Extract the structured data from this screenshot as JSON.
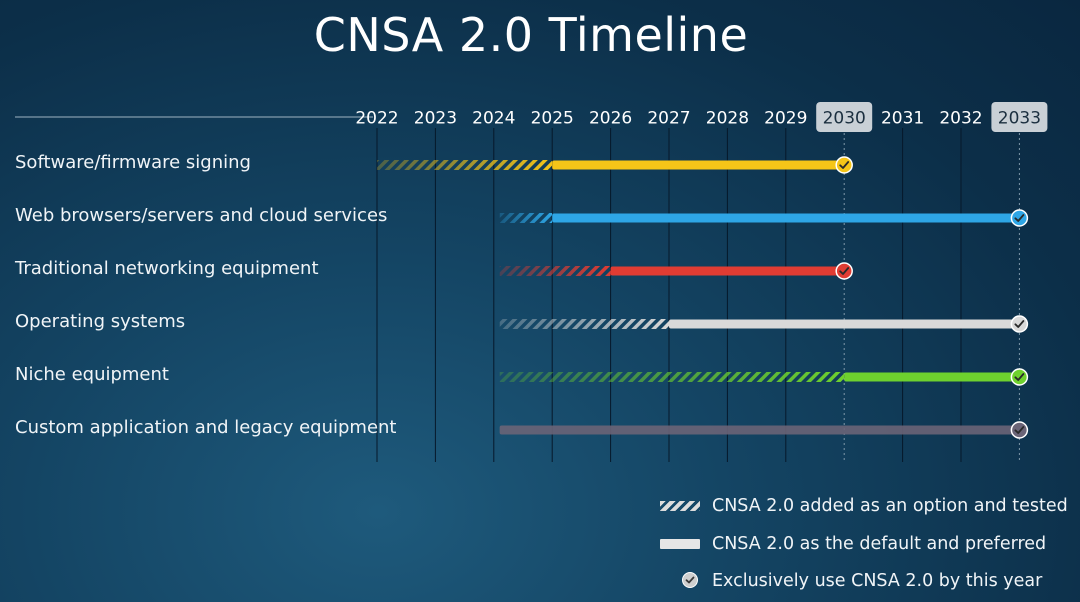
{
  "title": "CNSA 2.0 Timeline",
  "years": [
    "2022",
    "2023",
    "2024",
    "2025",
    "2026",
    "2027",
    "2028",
    "2029",
    "2030",
    "2031",
    "2032",
    "2033"
  ],
  "highlighted_years": [
    "2030",
    "2033"
  ],
  "rows": [
    {
      "label": "Software/firmware signing",
      "color": "#f5c518",
      "hatch_start": 2022.0,
      "solid_start": 2025.0,
      "end": 2030.0
    },
    {
      "label": "Web browsers/servers and cloud services",
      "color": "#2ea6e6",
      "hatch_start": 2024.1,
      "solid_start": 2025.0,
      "end": 2033.0
    },
    {
      "label": "Traditional networking equipment",
      "color": "#e03c33",
      "hatch_start": 2024.1,
      "solid_start": 2026.0,
      "end": 2030.0
    },
    {
      "label": "Operating systems",
      "color": "#d9d9d9",
      "hatch_start": 2024.1,
      "solid_start": 2027.0,
      "end": 2033.0
    },
    {
      "label": "Niche equipment",
      "color": "#6ed12e",
      "hatch_start": 2024.1,
      "solid_start": 2030.0,
      "end": 2033.0
    },
    {
      "label": "Custom application and legacy equipment",
      "color": "#6a6477",
      "hatch_start": 2024.1,
      "solid_start": 2024.1,
      "end": 2033.0
    }
  ],
  "legend": {
    "hatch": "CNSA 2.0 added as an option and tested",
    "solid": "CNSA 2.0 as the default and preferred",
    "check": "Exclusively use CNSA 2.0 by this year"
  }
}
